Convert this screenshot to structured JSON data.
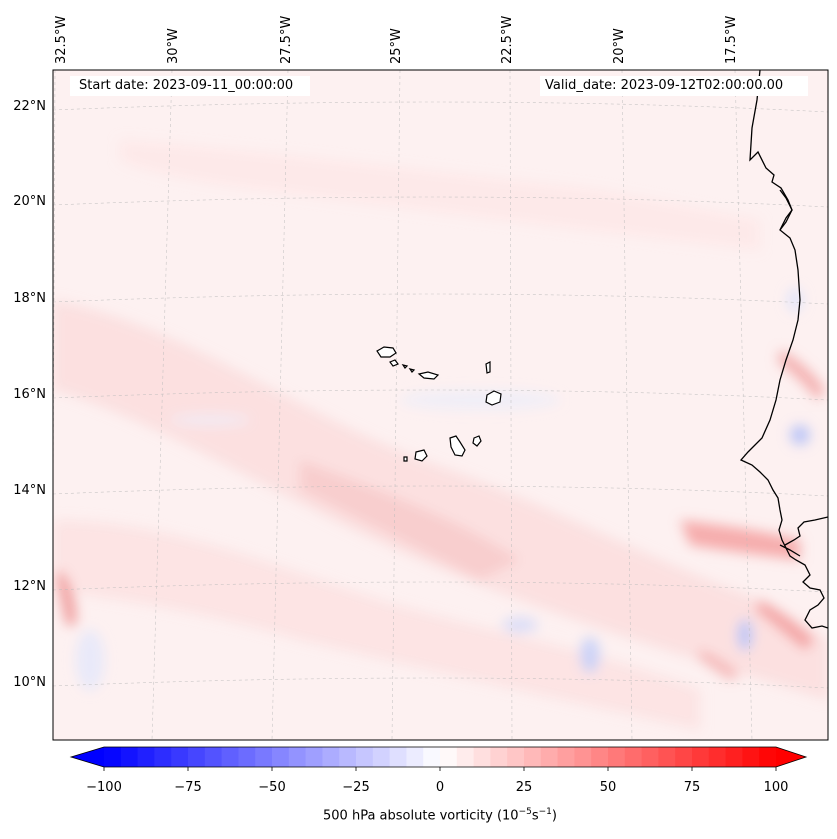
{
  "header": {
    "start_date": "Start date: 2023-09-11_00:00:00",
    "valid_date": "Valid_date: 2023-09-12T02:00:00.00"
  },
  "longitude_labels": [
    "32.5°W",
    "30°W",
    "27.5°W",
    "25°W",
    "22.5°W",
    "20°W",
    "17.5°W"
  ],
  "latitude_labels": [
    "22°N",
    "20°N",
    "18°N",
    "16°N",
    "14°N",
    "12°N",
    "10°N"
  ],
  "colorbar": {
    "ticks": [
      "−100",
      "−75",
      "−50",
      "−25",
      "0",
      "25",
      "50",
      "75",
      "100"
    ],
    "label_main": "500 hPa absolute vorticity (10",
    "label_exp1": "−5",
    "label_mid": "s",
    "label_exp2": "−1",
    "label_end": ")",
    "min": -100,
    "max": 100,
    "colormap": "bwr",
    "negative_color": "#0000ff",
    "zero_color": "#ffffff",
    "positive_color": "#ff0000"
  },
  "map": {
    "field": "500 hPa absolute vorticity",
    "projection": "lambert conformal",
    "lon_range": [
      -33,
      -16
    ],
    "lat_range": [
      9,
      22.5
    ],
    "gridlines": true,
    "coastlines": true,
    "region_features": [
      "Cape Verde islands",
      "West African coast"
    ]
  }
}
